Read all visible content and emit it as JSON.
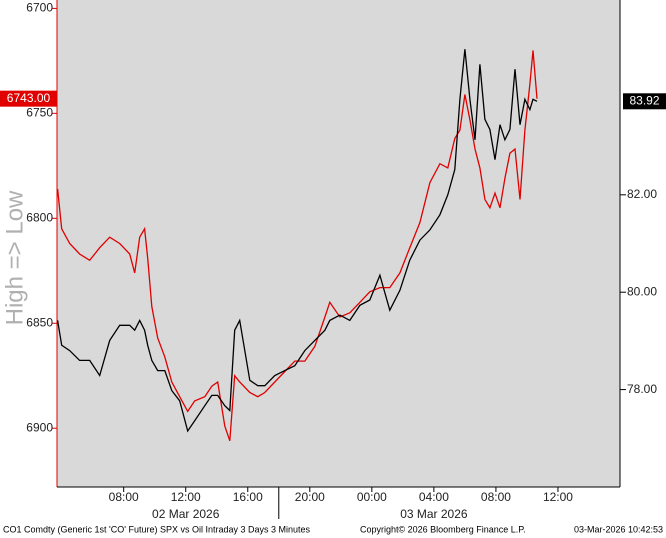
{
  "chart_data": {
    "type": "line",
    "y_axis_label": "High => Low",
    "x": [
      3.74,
      4.0,
      4.52,
      5.16,
      5.81,
      6.45,
      7.1,
      7.74,
      8.39,
      8.71,
      9.03,
      9.35,
      9.55,
      9.81,
      10.19,
      10.65,
      11.1,
      11.61,
      12.13,
      12.58,
      13.23,
      13.68,
      14.06,
      14.52,
      14.84,
      15.16,
      15.48,
      16.13,
      16.65,
      17.1,
      17.74,
      18.39,
      19.03,
      19.68,
      20.32,
      20.97,
      21.29,
      21.94,
      22.58,
      23.23,
      23.87,
      24.52,
      25.16,
      25.81,
      26.45,
      27.1,
      27.74,
      28.39,
      28.9,
      29.35,
      29.68,
      30.0,
      30.32,
      30.65,
      30.97,
      31.29,
      31.61,
      31.94,
      32.26,
      32.58,
      32.9,
      33.23,
      33.55,
      33.87,
      34.19,
      34.39,
      34.65
    ],
    "series": [
      {
        "color": "#e00000",
        "axis": "y",
        "last_label": "6743.00",
        "values": [
          6786,
          6805,
          6812,
          6817,
          6820,
          6814,
          6809,
          6812,
          6817,
          6826,
          6809,
          6805,
          6819,
          6842,
          6857,
          6866,
          6878,
          6885,
          6892,
          6887,
          6885,
          6880,
          6878,
          6899,
          6906,
          6875,
          6878,
          6883,
          6885,
          6883,
          6878,
          6873,
          6868,
          6868,
          6861,
          6847,
          6840,
          6847,
          6845,
          6840,
          6835,
          6833,
          6833,
          6826,
          6814,
          6802,
          6783,
          6774,
          6776,
          6762,
          6758,
          6741,
          6753,
          6767,
          6776,
          6791,
          6795,
          6788,
          6795,
          6781,
          6769,
          6767,
          6791,
          6758,
          6736,
          6720,
          6743
        ]
      },
      {
        "color": "#000000",
        "axis": "y2",
        "last_label": "83.92",
        "values": [
          79.42,
          78.91,
          78.8,
          78.6,
          78.6,
          78.29,
          79.01,
          79.32,
          79.32,
          79.22,
          79.42,
          79.22,
          78.91,
          78.6,
          78.39,
          78.39,
          77.98,
          77.77,
          77.15,
          77.36,
          77.67,
          77.88,
          77.88,
          77.67,
          77.57,
          79.22,
          79.42,
          78.19,
          78.08,
          78.08,
          78.29,
          78.39,
          78.49,
          78.8,
          79.01,
          79.22,
          79.42,
          79.53,
          79.42,
          79.73,
          79.84,
          80.35,
          79.63,
          80.04,
          80.66,
          81.07,
          81.28,
          81.59,
          82.0,
          82.52,
          83.96,
          84.99,
          83.96,
          83.13,
          84.68,
          83.55,
          83.34,
          82.72,
          83.44,
          83.13,
          83.34,
          84.58,
          83.44,
          83.96,
          83.75,
          83.96,
          83.92
        ]
      }
    ],
    "xlim": [
      3.7,
      40
    ],
    "xticks": [
      {
        "value": 8,
        "label": "08:00"
      },
      {
        "value": 12,
        "label": "12:00"
      },
      {
        "value": 16,
        "label": "16:00"
      },
      {
        "value": 20,
        "label": "20:00"
      },
      {
        "value": 24,
        "label": "00:00"
      },
      {
        "value": 28,
        "label": "04:00"
      },
      {
        "value": 32,
        "label": "08:00"
      },
      {
        "value": 36,
        "label": "12:00"
      }
    ],
    "date_labels": [
      {
        "value": 12,
        "label": "02 Mar 2026"
      },
      {
        "value": 28,
        "label": "03 Mar 2026"
      }
    ],
    "day_break": 18,
    "ylim": [
      6696,
      6928
    ],
    "y_inverted": true,
    "yticks": [
      6700,
      6750,
      6800,
      6850,
      6900
    ],
    "y2lim": [
      76,
      86
    ],
    "y2ticks": [
      {
        "value": 78,
        "label": "78.00"
      },
      {
        "value": 80,
        "label": "80.00"
      },
      {
        "value": 82,
        "label": "82.00"
      }
    ],
    "footer": {
      "left": "CO1 Comdty (Generic 1st 'CO' Future) SPX vs Oil Intraday 3 Days 3 Minutes",
      "center": "Copyright© 2026 Bloomberg Finance L.P.",
      "right": "03-Mar-2026 10:42:53"
    }
  }
}
